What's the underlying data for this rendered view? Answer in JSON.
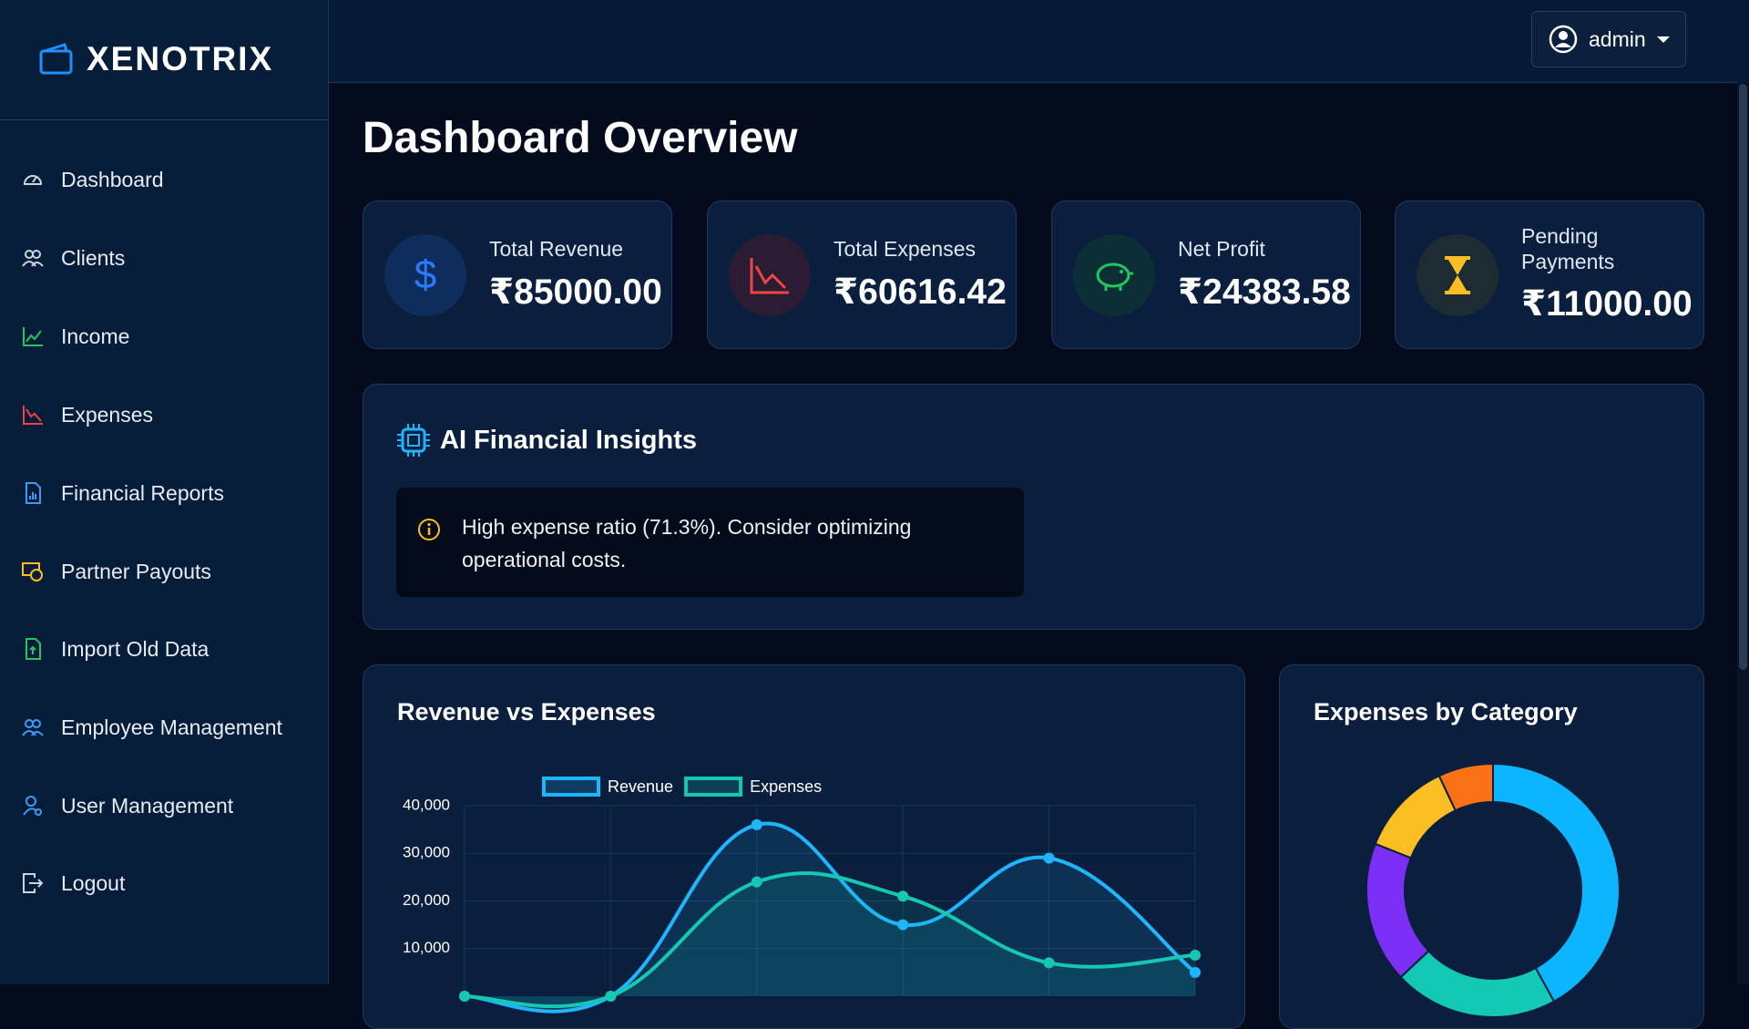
{
  "brand": "XENOTRIX",
  "user": "admin",
  "nav": [
    "Dashboard",
    "Clients",
    "Income",
    "Expenses",
    "Financial Reports",
    "Partner Payouts",
    "Import Old Data",
    "Employee Management",
    "User Management",
    "Logout"
  ],
  "page_title": "Dashboard Overview",
  "stats": [
    {
      "label": "Total Revenue",
      "value": "₹85000.00"
    },
    {
      "label": "Total Expenses",
      "value": "₹60616.42"
    },
    {
      "label": "Net Profit",
      "value": "₹24383.58"
    },
    {
      "label": "Pending Payments",
      "value": "₹11000.00"
    }
  ],
  "insights": {
    "title": "AI Financial Insights",
    "items": [
      "High expense ratio (71.3%). Consider optimizing operational costs."
    ]
  },
  "chart_data": [
    {
      "type": "line",
      "title": "Revenue vs Expenses",
      "categories": [
        null,
        null,
        null,
        null,
        null,
        null
      ],
      "series": [
        {
          "name": "Revenue",
          "color": "#1fb6ff",
          "values": [
            0,
            0,
            36000,
            15000,
            29000,
            5000
          ]
        },
        {
          "name": "Expenses",
          "color": "#14c8b4",
          "values": [
            0,
            0,
            24000,
            21000,
            7000,
            8616
          ]
        }
      ],
      "ylim": [
        0,
        40000
      ],
      "yticks": [
        {
          "value": 10000,
          "label": "10,000"
        },
        {
          "value": 20000,
          "label": "20,000"
        },
        {
          "value": 30000,
          "label": "30,000"
        },
        {
          "value": 40000,
          "label": "40,000"
        }
      ],
      "grid": true,
      "legend": "top"
    },
    {
      "type": "doughnut",
      "title": "Expenses by Category",
      "values": [
        42,
        21,
        18,
        12,
        7
      ],
      "colors": [
        "#0bb5ff",
        "#12c9b5",
        "#7b2ff7",
        "#fbbf24",
        "#f97316"
      ]
    }
  ]
}
